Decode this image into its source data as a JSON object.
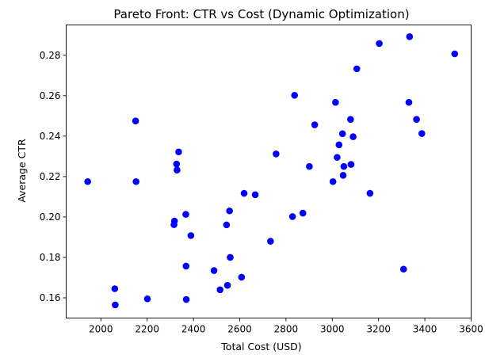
{
  "chart_data": {
    "type": "scatter",
    "title": "Pareto Front: CTR vs Cost (Dynamic Optimization)",
    "xlabel": "Total Cost (USD)",
    "ylabel": "Average CTR",
    "xlim": [
      1850,
      3600
    ],
    "ylim": [
      0.15,
      0.295
    ],
    "xticks": [
      2000,
      2200,
      2400,
      2600,
      2800,
      3000,
      3200,
      3400,
      3600
    ],
    "xtick_labels": [
      "2000",
      "2200",
      "2400",
      "2600",
      "2800",
      "3000",
      "3200",
      "3400",
      "3600"
    ],
    "yticks": [
      0.16,
      0.18,
      0.2,
      0.22,
      0.24,
      0.26,
      0.28
    ],
    "ytick_labels": [
      "0.16",
      "0.18",
      "0.20",
      "0.22",
      "0.24",
      "0.26",
      "0.28"
    ],
    "grid": false,
    "legend": "none",
    "marker_color": "#0000ff",
    "series": [
      {
        "points": [
          [
            1943,
            0.2175
          ],
          [
            2060,
            0.1645
          ],
          [
            2062,
            0.1565
          ],
          [
            2150,
            0.2475
          ],
          [
            2152,
            0.2175
          ],
          [
            2201,
            0.1595
          ],
          [
            2316,
            0.1962
          ],
          [
            2318,
            0.198
          ],
          [
            2327,
            0.2262
          ],
          [
            2329,
            0.2232
          ],
          [
            2336,
            0.2322
          ],
          [
            2367,
            0.2013
          ],
          [
            2368,
            0.1757
          ],
          [
            2369,
            0.1592
          ],
          [
            2389,
            0.1908
          ],
          [
            2489,
            0.1735
          ],
          [
            2515,
            0.164
          ],
          [
            2543,
            0.1961
          ],
          [
            2547,
            0.1662
          ],
          [
            2556,
            0.203
          ],
          [
            2559,
            0.18
          ],
          [
            2608,
            0.1702
          ],
          [
            2619,
            0.2117
          ],
          [
            2667,
            0.211
          ],
          [
            2733,
            0.188
          ],
          [
            2757,
            0.2312
          ],
          [
            2828,
            0.2002
          ],
          [
            2837,
            0.2602
          ],
          [
            2873,
            0.2019
          ],
          [
            2901,
            0.225
          ],
          [
            2924,
            0.2456
          ],
          [
            3003,
            0.2175
          ],
          [
            3014,
            0.2567
          ],
          [
            3021,
            0.2295
          ],
          [
            3029,
            0.2357
          ],
          [
            3044,
            0.2412
          ],
          [
            3047,
            0.2206
          ],
          [
            3050,
            0.225
          ],
          [
            3079,
            0.2483
          ],
          [
            3081,
            0.226
          ],
          [
            3090,
            0.2397
          ],
          [
            3106,
            0.2733
          ],
          [
            3163,
            0.2117
          ],
          [
            3203,
            0.2858
          ],
          [
            3308,
            0.1742
          ],
          [
            3331,
            0.2567
          ],
          [
            3334,
            0.2892
          ],
          [
            3364,
            0.2483
          ],
          [
            3387,
            0.2413
          ],
          [
            3529,
            0.2807
          ]
        ]
      }
    ]
  }
}
